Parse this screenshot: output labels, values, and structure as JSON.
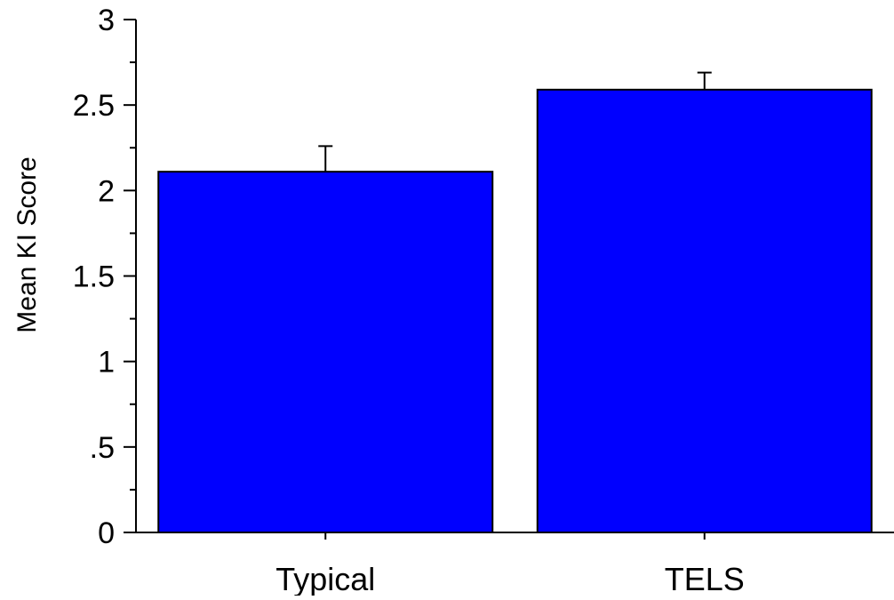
{
  "chart_data": {
    "type": "bar",
    "title": "",
    "xlabel": "",
    "ylabel": "Mean KI Score",
    "categories": [
      "Typical",
      "TELS"
    ],
    "values": [
      2.11,
      2.59
    ],
    "error_upper": [
      0.15,
      0.1
    ],
    "ylim": [
      0,
      3
    ],
    "major_ticks": [
      0,
      0.5,
      1,
      1.5,
      2,
      2.5,
      3
    ],
    "minor_ticks": [
      0.25,
      0.75,
      1.25,
      1.75,
      2.25,
      2.75
    ],
    "tick_labels": [
      "0",
      ".5",
      "1",
      "1.5",
      "2",
      "2.5",
      "3"
    ],
    "grid": false,
    "legend": "none",
    "bar_color": "#0000ff",
    "bar_edge_color": "#000000"
  }
}
